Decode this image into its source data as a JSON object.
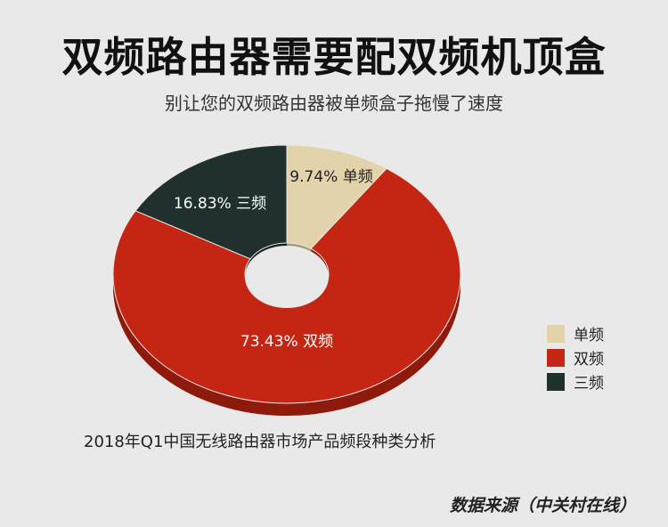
{
  "title": "双频路由器需要配双频机顶盒",
  "subtitle": "别让您的双频路由器被单频盒子拖慢了速度",
  "caption": "2018年Q1中国无线路由器市场产品频段种类分析",
  "source": "数据来源（中关村在线）",
  "colors": {
    "single": "#e2d3ab",
    "dual": "#c52613",
    "tri": "#1f302d"
  },
  "chart_data": {
    "type": "pie",
    "style": "donut-3d",
    "slices": [
      {
        "name": "单频",
        "value": 9.74,
        "label": "9.74% 单频",
        "color_key": "single"
      },
      {
        "name": "双频",
        "value": 73.43,
        "label": "73.43% 双频",
        "color_key": "dual"
      },
      {
        "name": "三频",
        "value": 16.83,
        "label": "16.83% 三频",
        "color_key": "tri"
      }
    ],
    "legend": [
      {
        "name": "单频",
        "color_key": "single"
      },
      {
        "name": "双频",
        "color_key": "dual"
      },
      {
        "name": "三频",
        "color_key": "tri"
      }
    ],
    "legend_position": "right"
  }
}
